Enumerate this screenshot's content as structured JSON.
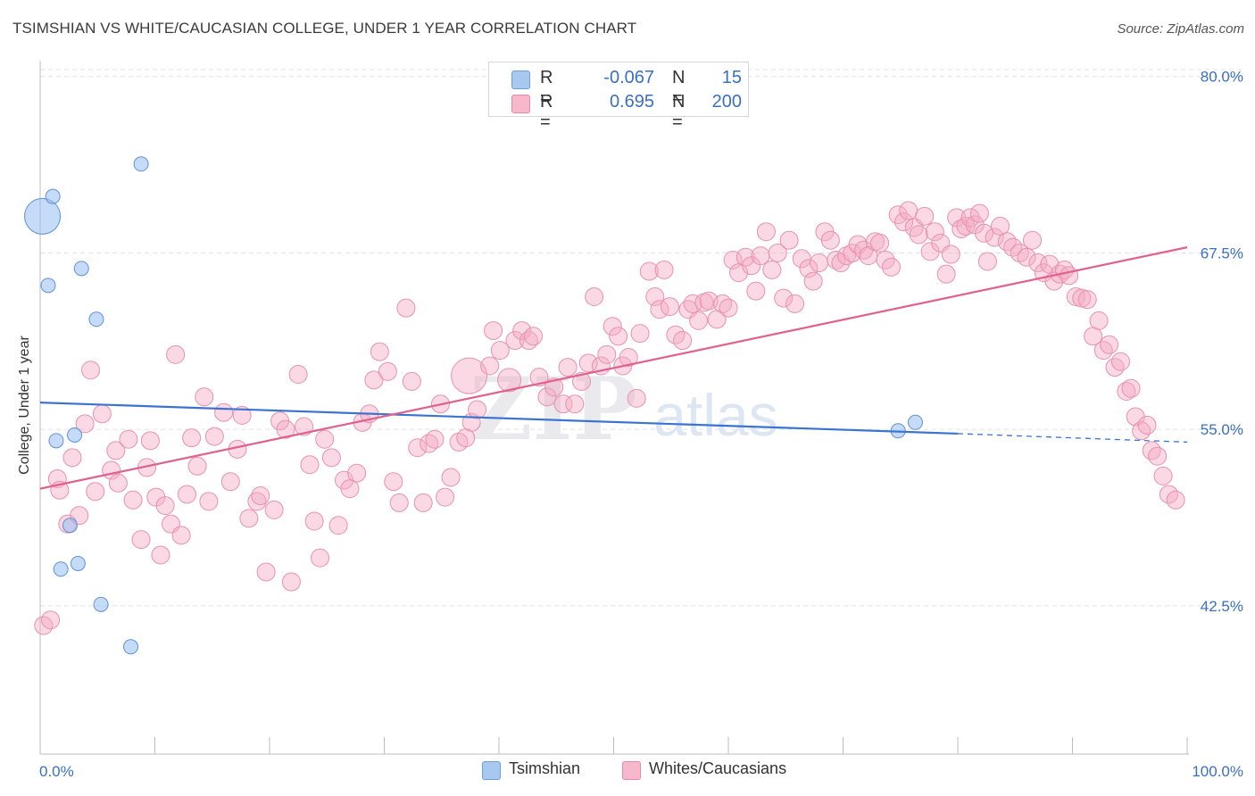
{
  "title": "TSIMSHIAN VS WHITE/CAUCASIAN COLLEGE, UNDER 1 YEAR CORRELATION CHART",
  "source": "Source: ZipAtlas.com",
  "watermark": {
    "zip": "ZIP",
    "atlas": "atlas"
  },
  "legend_top": [
    {
      "r_label": "R =",
      "r_value": "-0.067",
      "n_label": "N =",
      "n_value": "15",
      "color": "#a9c8f0",
      "border": "#6f9fd8"
    },
    {
      "r_label": "R =",
      "r_value": "0.695",
      "n_label": "N =",
      "n_value": "200",
      "color": "#f7b8cc",
      "border": "#e889a8"
    }
  ],
  "legend_bottom": [
    {
      "label": "Tsimshian",
      "color": "#a9c8f0",
      "border": "#6f9fd8"
    },
    {
      "label": "Whites/Caucasians",
      "color": "#f7b8cc",
      "border": "#e889a8"
    }
  ],
  "colors": {
    "blue": "#3b74d0",
    "pink": "#e0608e",
    "blue_fill": "rgba(150,190,240,0.55)",
    "pink_fill": "rgba(245,170,195,0.45)",
    "axis_text": "#3a6fc4"
  },
  "chart_data": {
    "type": "scatter",
    "xlabel": "",
    "ylabel": "College, Under 1 year",
    "xlim": [
      0,
      100
    ],
    "ylim": [
      32,
      81.5
    ],
    "x_tick_labels": [
      {
        "value": 0,
        "label": "0.0%"
      },
      {
        "value": 100,
        "label": "100.0%"
      }
    ],
    "y_tick_labels": [
      {
        "value": 80,
        "label": "80.0%"
      },
      {
        "value": 67.5,
        "label": "67.5%"
      },
      {
        "value": 55,
        "label": "55.0%"
      },
      {
        "value": 42.5,
        "label": "42.5%"
      }
    ],
    "x_minor_ticks": [
      10,
      20,
      30,
      40,
      50,
      60,
      70,
      80,
      90,
      100
    ],
    "grid": true,
    "legend": "top-center",
    "series": [
      {
        "name": "Tsimshian",
        "color": "blue",
        "points": [
          [
            0.2,
            70.1,
            2.5
          ],
          [
            1.1,
            71.5,
            1
          ],
          [
            0.7,
            65.2,
            1
          ],
          [
            3.6,
            66.4,
            1
          ],
          [
            8.8,
            73.8,
            1
          ],
          [
            4.9,
            62.8,
            1
          ],
          [
            1.4,
            54.2,
            1
          ],
          [
            3.0,
            54.6,
            1
          ],
          [
            2.6,
            48.2,
            1
          ],
          [
            1.8,
            45.1,
            1
          ],
          [
            3.3,
            45.5,
            1
          ],
          [
            5.3,
            42.6,
            1
          ],
          [
            7.9,
            39.6,
            1
          ],
          [
            74.8,
            54.9,
            1
          ],
          [
            76.3,
            55.5,
            1
          ]
        ],
        "trend": {
          "x": [
            0,
            80
          ],
          "y": [
            56.9,
            54.7
          ],
          "dashed_to": [
            100,
            54.1
          ]
        }
      },
      {
        "name": "Whites/Caucasians",
        "color": "pink",
        "points": [
          [
            0.3,
            41.1,
            1
          ],
          [
            0.9,
            41.5,
            1
          ],
          [
            1.5,
            51.5,
            1
          ],
          [
            1.7,
            50.7,
            1
          ],
          [
            2.4,
            48.3,
            1
          ],
          [
            2.8,
            53.0,
            1
          ],
          [
            3.4,
            48.9,
            1
          ],
          [
            3.9,
            55.4,
            1
          ],
          [
            4.4,
            59.2,
            1
          ],
          [
            4.8,
            50.6,
            1
          ],
          [
            5.4,
            56.1,
            1
          ],
          [
            6.2,
            52.1,
            1
          ],
          [
            6.6,
            53.5,
            1
          ],
          [
            6.8,
            51.2,
            1
          ],
          [
            7.7,
            54.3,
            1
          ],
          [
            8.1,
            50.0,
            1
          ],
          [
            8.8,
            47.2,
            1
          ],
          [
            9.3,
            52.3,
            1
          ],
          [
            9.6,
            54.2,
            1
          ],
          [
            10.1,
            50.2,
            1
          ],
          [
            10.5,
            46.1,
            1
          ],
          [
            10.9,
            49.6,
            1
          ],
          [
            11.4,
            48.3,
            1
          ],
          [
            11.8,
            60.3,
            1
          ],
          [
            12.3,
            47.5,
            1
          ],
          [
            12.8,
            50.4,
            1
          ],
          [
            13.2,
            54.4,
            1
          ],
          [
            13.7,
            52.4,
            1
          ],
          [
            14.3,
            57.3,
            1
          ],
          [
            14.7,
            49.9,
            1
          ],
          [
            15.2,
            54.5,
            1
          ],
          [
            16.0,
            56.2,
            1
          ],
          [
            16.6,
            51.3,
            1
          ],
          [
            17.2,
            53.6,
            1
          ],
          [
            17.6,
            56.0,
            1
          ],
          [
            18.2,
            48.7,
            1
          ],
          [
            18.9,
            49.9,
            1
          ],
          [
            19.2,
            50.3,
            1
          ],
          [
            19.7,
            44.9,
            1
          ],
          [
            20.4,
            49.3,
            1
          ],
          [
            20.9,
            55.6,
            1
          ],
          [
            21.4,
            55.0,
            1
          ],
          [
            21.9,
            44.2,
            1
          ],
          [
            22.5,
            58.9,
            1
          ],
          [
            23.0,
            55.2,
            1
          ],
          [
            23.5,
            52.5,
            1
          ],
          [
            23.9,
            48.5,
            1
          ],
          [
            24.4,
            45.9,
            1
          ],
          [
            24.8,
            54.3,
            1
          ],
          [
            25.4,
            53.0,
            1
          ],
          [
            26.0,
            48.2,
            1
          ],
          [
            26.5,
            51.4,
            1
          ],
          [
            27.0,
            50.8,
            1
          ],
          [
            27.6,
            51.9,
            1
          ],
          [
            28.1,
            55.5,
            1
          ],
          [
            28.7,
            56.1,
            1
          ],
          [
            29.1,
            58.5,
            1
          ],
          [
            29.6,
            60.5,
            1
          ],
          [
            30.3,
            59.1,
            1
          ],
          [
            30.8,
            51.3,
            1
          ],
          [
            31.3,
            49.8,
            1
          ],
          [
            31.9,
            63.6,
            1
          ],
          [
            32.4,
            58.4,
            1
          ],
          [
            32.9,
            53.7,
            1
          ],
          [
            33.4,
            49.8,
            1
          ],
          [
            33.9,
            54.0,
            1
          ],
          [
            34.4,
            54.3,
            1
          ],
          [
            34.9,
            56.8,
            1
          ],
          [
            35.3,
            50.2,
            1
          ],
          [
            35.8,
            51.6,
            1
          ],
          [
            36.5,
            54.1,
            1
          ],
          [
            37.1,
            54.4,
            1
          ],
          [
            37.6,
            55.5,
            1
          ],
          [
            38.1,
            56.4,
            1
          ],
          [
            37.4,
            58.8,
            2
          ],
          [
            39.2,
            59.5,
            1
          ],
          [
            39.5,
            62.0,
            1
          ],
          [
            40.1,
            60.6,
            1
          ],
          [
            40.9,
            58.5,
            1.3
          ],
          [
            41.4,
            61.3,
            1
          ],
          [
            42.0,
            62.0,
            1
          ],
          [
            42.6,
            61.3,
            1
          ],
          [
            43.0,
            61.6,
            1
          ],
          [
            43.5,
            58.7,
            1
          ],
          [
            44.2,
            57.3,
            1
          ],
          [
            44.8,
            58.0,
            1
          ],
          [
            45.6,
            56.8,
            1
          ],
          [
            46.0,
            59.4,
            1
          ],
          [
            46.6,
            56.8,
            1
          ],
          [
            47.2,
            58.4,
            1
          ],
          [
            47.8,
            59.7,
            1
          ],
          [
            48.3,
            64.4,
            1
          ],
          [
            48.9,
            59.5,
            1
          ],
          [
            49.4,
            60.3,
            1
          ],
          [
            49.9,
            62.3,
            1
          ],
          [
            50.4,
            61.6,
            1
          ],
          [
            50.8,
            59.5,
            1
          ],
          [
            51.3,
            60.1,
            1
          ],
          [
            52.0,
            57.2,
            1
          ],
          [
            52.3,
            61.8,
            1
          ],
          [
            53.1,
            66.2,
            1
          ],
          [
            53.6,
            64.4,
            1
          ],
          [
            54.0,
            63.5,
            1
          ],
          [
            54.4,
            66.3,
            1
          ],
          [
            54.9,
            63.7,
            1
          ],
          [
            55.4,
            61.7,
            1
          ],
          [
            56.0,
            61.3,
            1
          ],
          [
            56.5,
            63.5,
            1
          ],
          [
            56.9,
            63.9,
            1
          ],
          [
            57.4,
            62.7,
            1
          ],
          [
            57.9,
            64.0,
            1
          ],
          [
            58.3,
            64.1,
            1
          ],
          [
            59.0,
            62.8,
            1
          ],
          [
            59.5,
            63.9,
            1
          ],
          [
            60.0,
            63.6,
            1
          ],
          [
            60.4,
            67.0,
            1
          ],
          [
            60.9,
            66.1,
            1
          ],
          [
            61.5,
            67.2,
            1
          ],
          [
            62.0,
            66.6,
            1
          ],
          [
            62.4,
            64.8,
            1
          ],
          [
            62.8,
            67.3,
            1
          ],
          [
            63.3,
            69.0,
            1
          ],
          [
            63.8,
            66.3,
            1
          ],
          [
            64.3,
            67.5,
            1
          ],
          [
            64.8,
            64.3,
            1
          ],
          [
            65.3,
            68.4,
            1
          ],
          [
            65.8,
            63.9,
            1
          ],
          [
            66.4,
            67.1,
            1
          ],
          [
            67.0,
            66.4,
            1
          ],
          [
            67.4,
            65.5,
            1
          ],
          [
            67.9,
            66.8,
            1
          ],
          [
            68.4,
            69.0,
            1
          ],
          [
            68.9,
            68.4,
            1
          ],
          [
            69.4,
            67.0,
            1
          ],
          [
            69.8,
            66.8,
            1
          ],
          [
            70.3,
            67.3,
            1
          ],
          [
            70.8,
            67.5,
            1
          ],
          [
            71.3,
            68.1,
            1
          ],
          [
            71.8,
            67.7,
            1
          ],
          [
            72.2,
            67.3,
            1
          ],
          [
            72.8,
            68.3,
            1
          ],
          [
            73.2,
            68.2,
            1
          ],
          [
            73.7,
            67.0,
            1
          ],
          [
            74.2,
            66.5,
            1
          ],
          [
            74.8,
            70.2,
            1
          ],
          [
            75.3,
            69.7,
            1
          ],
          [
            75.7,
            70.5,
            1
          ],
          [
            76.2,
            69.3,
            1
          ],
          [
            76.6,
            68.8,
            1
          ],
          [
            77.1,
            70.1,
            1
          ],
          [
            77.6,
            67.6,
            1
          ],
          [
            78.0,
            69.0,
            1
          ],
          [
            78.5,
            68.2,
            1
          ],
          [
            79.0,
            66.0,
            1
          ],
          [
            79.4,
            67.4,
            1
          ],
          [
            79.9,
            70.0,
            1
          ],
          [
            80.3,
            69.2,
            1
          ],
          [
            80.7,
            69.4,
            1
          ],
          [
            81.1,
            70.0,
            1
          ],
          [
            81.5,
            69.5,
            1
          ],
          [
            81.9,
            70.3,
            1
          ],
          [
            82.3,
            68.9,
            1
          ],
          [
            82.6,
            66.9,
            1
          ],
          [
            83.2,
            68.6,
            1
          ],
          [
            83.7,
            69.4,
            1
          ],
          [
            84.3,
            68.3,
            1
          ],
          [
            84.8,
            67.9,
            1
          ],
          [
            85.4,
            67.5,
            1
          ],
          [
            86.0,
            67.2,
            1
          ],
          [
            86.5,
            68.4,
            1
          ],
          [
            87.0,
            66.8,
            1
          ],
          [
            87.5,
            66.1,
            1
          ],
          [
            88.0,
            66.7,
            1
          ],
          [
            88.4,
            65.5,
            1
          ],
          [
            88.9,
            66.0,
            1
          ],
          [
            89.3,
            66.3,
            1
          ],
          [
            89.7,
            65.9,
            1
          ],
          [
            90.3,
            64.4,
            1
          ],
          [
            90.8,
            64.3,
            1
          ],
          [
            91.3,
            64.2,
            1
          ],
          [
            91.8,
            61.6,
            1
          ],
          [
            92.3,
            62.7,
            1
          ],
          [
            92.7,
            60.6,
            1
          ],
          [
            93.2,
            61.0,
            1
          ],
          [
            93.7,
            59.4,
            1
          ],
          [
            94.2,
            59.8,
            1
          ],
          [
            94.7,
            57.7,
            1
          ],
          [
            95.1,
            57.9,
            1
          ],
          [
            95.5,
            55.9,
            1
          ],
          [
            96.0,
            54.9,
            1
          ],
          [
            96.5,
            55.3,
            1
          ],
          [
            96.9,
            53.5,
            1
          ],
          [
            97.4,
            53.1,
            1
          ],
          [
            97.9,
            51.7,
            1
          ],
          [
            98.4,
            50.4,
            1
          ],
          [
            99.0,
            50.0,
            1
          ]
        ],
        "trend": {
          "x": [
            0,
            100
          ],
          "y": [
            50.8,
            67.9
          ]
        }
      }
    ]
  }
}
